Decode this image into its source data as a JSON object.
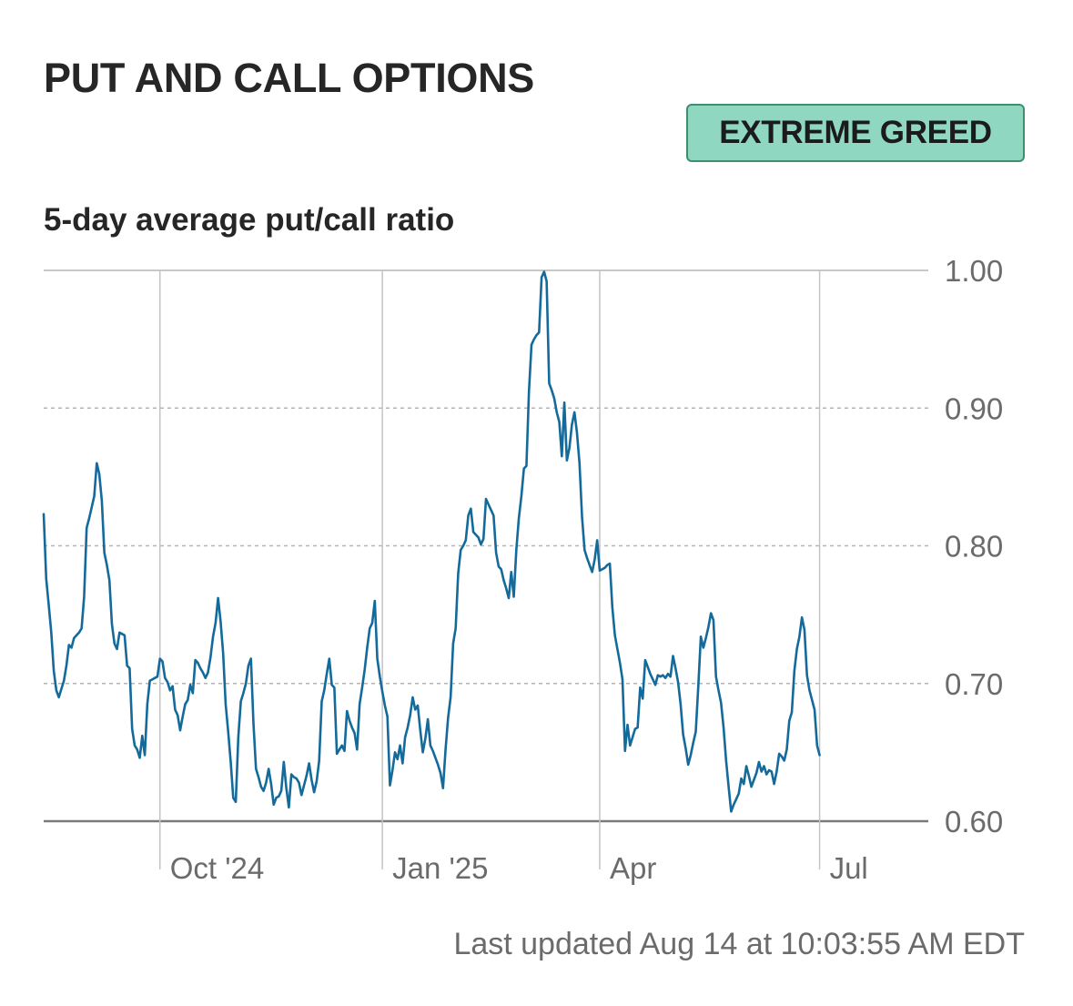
{
  "header": {
    "title": "PUT AND CALL OPTIONS",
    "rating": "EXTREME GREED",
    "rating_color": "#8fd7c0",
    "subtitle": "5-day average put/call ratio"
  },
  "footer": {
    "last_updated": "Last updated Aug 14 at 10:03:55 AM EDT"
  },
  "chart_data": {
    "type": "line",
    "title": "5-day average put/call ratio",
    "xlabel": "",
    "ylabel": "",
    "ylim": [
      0.6,
      1.0
    ],
    "y_ticks": [
      {
        "value": 1.0,
        "label": "1.00"
      },
      {
        "value": 0.9,
        "label": "0.90"
      },
      {
        "value": 0.8,
        "label": "0.80"
      },
      {
        "value": 0.7,
        "label": "0.70"
      },
      {
        "value": 0.6,
        "label": "0.60"
      }
    ],
    "x_ticks": [
      {
        "day": 46,
        "label": "Oct '24"
      },
      {
        "day": 134,
        "label": "Jan '25"
      },
      {
        "day": 220,
        "label": "Apr"
      },
      {
        "day": 307,
        "label": "Jul"
      }
    ],
    "x_range_days": [
      0,
      350
    ],
    "grid": true,
    "line_color": "#136a9b",
    "series": [
      {
        "name": "5-day average put/call ratio",
        "points": [
          [
            0,
            0.823
          ],
          [
            1,
            0.776
          ],
          [
            2,
            0.757
          ],
          [
            3,
            0.737
          ],
          [
            4,
            0.709
          ],
          [
            5,
            0.695
          ],
          [
            6,
            0.69
          ],
          [
            7,
            0.696
          ],
          [
            8,
            0.702
          ],
          [
            9,
            0.713
          ],
          [
            10,
            0.728
          ],
          [
            11,
            0.726
          ],
          [
            12,
            0.733
          ],
          [
            13,
            0.735
          ],
          [
            14,
            0.737
          ],
          [
            15,
            0.74
          ],
          [
            16,
            0.763
          ],
          [
            17,
            0.813
          ],
          [
            18,
            0.82
          ],
          [
            19,
            0.828
          ],
          [
            20,
            0.836
          ],
          [
            21,
            0.86
          ],
          [
            22,
            0.852
          ],
          [
            23,
            0.833
          ],
          [
            24,
            0.795
          ],
          [
            25,
            0.786
          ],
          [
            26,
            0.775
          ],
          [
            27,
            0.743
          ],
          [
            28,
            0.729
          ],
          [
            29,
            0.725
          ],
          [
            30,
            0.737
          ],
          [
            31,
            0.736
          ],
          [
            32,
            0.735
          ],
          [
            33,
            0.713
          ],
          [
            34,
            0.711
          ],
          [
            35,
            0.667
          ],
          [
            36,
            0.655
          ],
          [
            37,
            0.652
          ],
          [
            38,
            0.646
          ],
          [
            39,
            0.662
          ],
          [
            40,
            0.648
          ],
          [
            41,
            0.685
          ],
          [
            42,
            0.702
          ],
          [
            43,
            0.703
          ],
          [
            44,
            0.704
          ],
          [
            45,
            0.705
          ],
          [
            46,
            0.718
          ],
          [
            47,
            0.716
          ],
          [
            48,
            0.704
          ],
          [
            49,
            0.701
          ],
          [
            50,
            0.695
          ],
          [
            51,
            0.698
          ],
          [
            52,
            0.681
          ],
          [
            53,
            0.677
          ],
          [
            54,
            0.666
          ],
          [
            55,
            0.676
          ],
          [
            56,
            0.685
          ],
          [
            57,
            0.688
          ],
          [
            58,
            0.699
          ],
          [
            59,
            0.693
          ],
          [
            60,
            0.717
          ],
          [
            61,
            0.715
          ],
          [
            62,
            0.711
          ],
          [
            63,
            0.708
          ],
          [
            64,
            0.704
          ],
          [
            65,
            0.708
          ],
          [
            66,
            0.719
          ],
          [
            67,
            0.734
          ],
          [
            68,
            0.744
          ],
          [
            69,
            0.762
          ],
          [
            70,
            0.745
          ],
          [
            71,
            0.722
          ],
          [
            72,
            0.685
          ],
          [
            73,
            0.665
          ],
          [
            74,
            0.643
          ],
          [
            75,
            0.617
          ],
          [
            76,
            0.614
          ],
          [
            77,
            0.661
          ],
          [
            78,
            0.687
          ],
          [
            79,
            0.693
          ],
          [
            80,
            0.7
          ],
          [
            81,
            0.713
          ],
          [
            82,
            0.718
          ],
          [
            83,
            0.671
          ],
          [
            84,
            0.638
          ],
          [
            85,
            0.632
          ],
          [
            86,
            0.625
          ],
          [
            87,
            0.622
          ],
          [
            88,
            0.628
          ],
          [
            89,
            0.638
          ],
          [
            90,
            0.627
          ],
          [
            91,
            0.612
          ],
          [
            92,
            0.617
          ],
          [
            93,
            0.618
          ],
          [
            94,
            0.622
          ],
          [
            95,
            0.643
          ],
          [
            96,
            0.624
          ],
          [
            97,
            0.61
          ],
          [
            98,
            0.634
          ],
          [
            99,
            0.632
          ],
          [
            100,
            0.631
          ],
          [
            101,
            0.628
          ],
          [
            102,
            0.619
          ],
          [
            103,
            0.626
          ],
          [
            104,
            0.633
          ],
          [
            105,
            0.642
          ],
          [
            106,
            0.63
          ],
          [
            107,
            0.621
          ],
          [
            108,
            0.629
          ],
          [
            109,
            0.644
          ],
          [
            110,
            0.687
          ],
          [
            111,
            0.695
          ],
          [
            112,
            0.707
          ],
          [
            113,
            0.718
          ],
          [
            114,
            0.699
          ],
          [
            115,
            0.697
          ],
          [
            116,
            0.649
          ],
          [
            117,
            0.652
          ],
          [
            118,
            0.655
          ],
          [
            119,
            0.651
          ],
          [
            120,
            0.68
          ],
          [
            121,
            0.673
          ],
          [
            122,
            0.668
          ],
          [
            123,
            0.664
          ],
          [
            124,
            0.652
          ],
          [
            125,
            0.685
          ],
          [
            126,
            0.697
          ],
          [
            127,
            0.71
          ],
          [
            128,
            0.726
          ],
          [
            129,
            0.74
          ],
          [
            130,
            0.744
          ],
          [
            131,
            0.76
          ],
          [
            132,
            0.718
          ],
          [
            133,
            0.705
          ],
          [
            134,
            0.694
          ],
          [
            135,
            0.684
          ],
          [
            136,
            0.676
          ],
          [
            137,
            0.626
          ],
          [
            138,
            0.637
          ],
          [
            139,
            0.65
          ],
          [
            140,
            0.645
          ],
          [
            141,
            0.655
          ],
          [
            142,
            0.642
          ],
          [
            143,
            0.661
          ],
          [
            144,
            0.668
          ],
          [
            145,
            0.677
          ],
          [
            146,
            0.69
          ],
          [
            147,
            0.681
          ],
          [
            148,
            0.684
          ],
          [
            149,
            0.666
          ],
          [
            150,
            0.65
          ],
          [
            151,
            0.66
          ],
          [
            152,
            0.674
          ],
          [
            153,
            0.655
          ],
          [
            154,
            0.651
          ],
          [
            155,
            0.646
          ],
          [
            156,
            0.641
          ],
          [
            157,
            0.635
          ],
          [
            158,
            0.624
          ],
          [
            159,
            0.652
          ],
          [
            160,
            0.675
          ],
          [
            161,
            0.69
          ],
          [
            162,
            0.729
          ],
          [
            163,
            0.74
          ],
          [
            164,
            0.78
          ],
          [
            165,
            0.797
          ],
          [
            166,
            0.8
          ],
          [
            167,
            0.804
          ],
          [
            168,
            0.822
          ],
          [
            169,
            0.827
          ],
          [
            170,
            0.81
          ],
          [
            171,
            0.808
          ],
          [
            172,
            0.806
          ],
          [
            173,
            0.801
          ],
          [
            174,
            0.805
          ],
          [
            175,
            0.834
          ],
          [
            176,
            0.83
          ],
          [
            177,
            0.826
          ],
          [
            178,
            0.822
          ],
          [
            179,
            0.795
          ],
          [
            180,
            0.785
          ],
          [
            181,
            0.783
          ],
          [
            182,
            0.775
          ],
          [
            183,
            0.769
          ],
          [
            184,
            0.762
          ],
          [
            185,
            0.781
          ],
          [
            186,
            0.763
          ],
          [
            187,
            0.797
          ],
          [
            188,
            0.82
          ],
          [
            189,
            0.836
          ],
          [
            190,
            0.856
          ],
          [
            191,
            0.858
          ],
          [
            192,
            0.912
          ],
          [
            193,
            0.946
          ],
          [
            194,
            0.95
          ],
          [
            195,
            0.953
          ],
          [
            196,
            0.955
          ],
          [
            197,
            0.995
          ],
          [
            198,
            0.999
          ],
          [
            199,
            0.992
          ],
          [
            200,
            0.918
          ],
          [
            201,
            0.913
          ],
          [
            202,
            0.907
          ],
          [
            203,
            0.897
          ],
          [
            204,
            0.89
          ],
          [
            205,
            0.865
          ],
          [
            206,
            0.904
          ],
          [
            207,
            0.862
          ],
          [
            208,
            0.871
          ],
          [
            209,
            0.888
          ],
          [
            210,
            0.897
          ],
          [
            211,
            0.882
          ],
          [
            212,
            0.86
          ],
          [
            213,
            0.821
          ],
          [
            214,
            0.797
          ],
          [
            215,
            0.791
          ],
          [
            216,
            0.786
          ],
          [
            217,
            0.781
          ],
          [
            218,
            0.79
          ],
          [
            219,
            0.804
          ],
          [
            220,
            0.782
          ],
          [
            221,
            0.783
          ],
          [
            222,
            0.784
          ],
          [
            223,
            0.786
          ],
          [
            224,
            0.787
          ],
          [
            225,
            0.755
          ],
          [
            226,
            0.735
          ],
          [
            227,
            0.725
          ],
          [
            228,
            0.715
          ],
          [
            229,
            0.703
          ],
          [
            230,
            0.651
          ],
          [
            231,
            0.67
          ],
          [
            232,
            0.655
          ],
          [
            233,
            0.661
          ],
          [
            234,
            0.667
          ],
          [
            235,
            0.668
          ],
          [
            236,
            0.697
          ],
          [
            237,
            0.689
          ],
          [
            238,
            0.717
          ],
          [
            239,
            0.712
          ],
          [
            240,
            0.707
          ],
          [
            241,
            0.703
          ],
          [
            242,
            0.699
          ],
          [
            243,
            0.706
          ],
          [
            244,
            0.705
          ],
          [
            245,
            0.706
          ],
          [
            246,
            0.704
          ],
          [
            247,
            0.707
          ],
          [
            248,
            0.705
          ],
          [
            249,
            0.72
          ],
          [
            250,
            0.711
          ],
          [
            251,
            0.701
          ],
          [
            252,
            0.685
          ],
          [
            253,
            0.663
          ],
          [
            254,
            0.653
          ],
          [
            255,
            0.641
          ],
          [
            256,
            0.648
          ],
          [
            257,
            0.657
          ],
          [
            258,
            0.665
          ],
          [
            259,
            0.698
          ],
          [
            260,
            0.734
          ],
          [
            261,
            0.726
          ],
          [
            262,
            0.733
          ],
          [
            263,
            0.741
          ],
          [
            264,
            0.751
          ],
          [
            265,
            0.746
          ],
          [
            266,
            0.705
          ],
          [
            267,
            0.695
          ],
          [
            268,
            0.686
          ],
          [
            269,
            0.668
          ],
          [
            270,
            0.644
          ],
          [
            271,
            0.625
          ],
          [
            272,
            0.607
          ],
          [
            273,
            0.612
          ],
          [
            274,
            0.616
          ],
          [
            275,
            0.62
          ],
          [
            276,
            0.631
          ],
          [
            277,
            0.627
          ],
          [
            278,
            0.64
          ],
          [
            279,
            0.633
          ],
          [
            280,
            0.625
          ],
          [
            281,
            0.63
          ],
          [
            282,
            0.635
          ],
          [
            283,
            0.643
          ],
          [
            284,
            0.636
          ],
          [
            285,
            0.64
          ],
          [
            286,
            0.634
          ],
          [
            287,
            0.637
          ],
          [
            288,
            0.636
          ],
          [
            289,
            0.627
          ],
          [
            290,
            0.636
          ],
          [
            291,
            0.649
          ],
          [
            292,
            0.647
          ],
          [
            293,
            0.644
          ],
          [
            294,
            0.652
          ],
          [
            295,
            0.673
          ],
          [
            296,
            0.679
          ],
          [
            297,
            0.709
          ],
          [
            298,
            0.725
          ],
          [
            299,
            0.734
          ],
          [
            300,
            0.748
          ],
          [
            301,
            0.739
          ],
          [
            302,
            0.706
          ],
          [
            303,
            0.695
          ],
          [
            304,
            0.688
          ],
          [
            305,
            0.681
          ],
          [
            306,
            0.655
          ],
          [
            307,
            0.648
          ]
        ]
      }
    ]
  }
}
